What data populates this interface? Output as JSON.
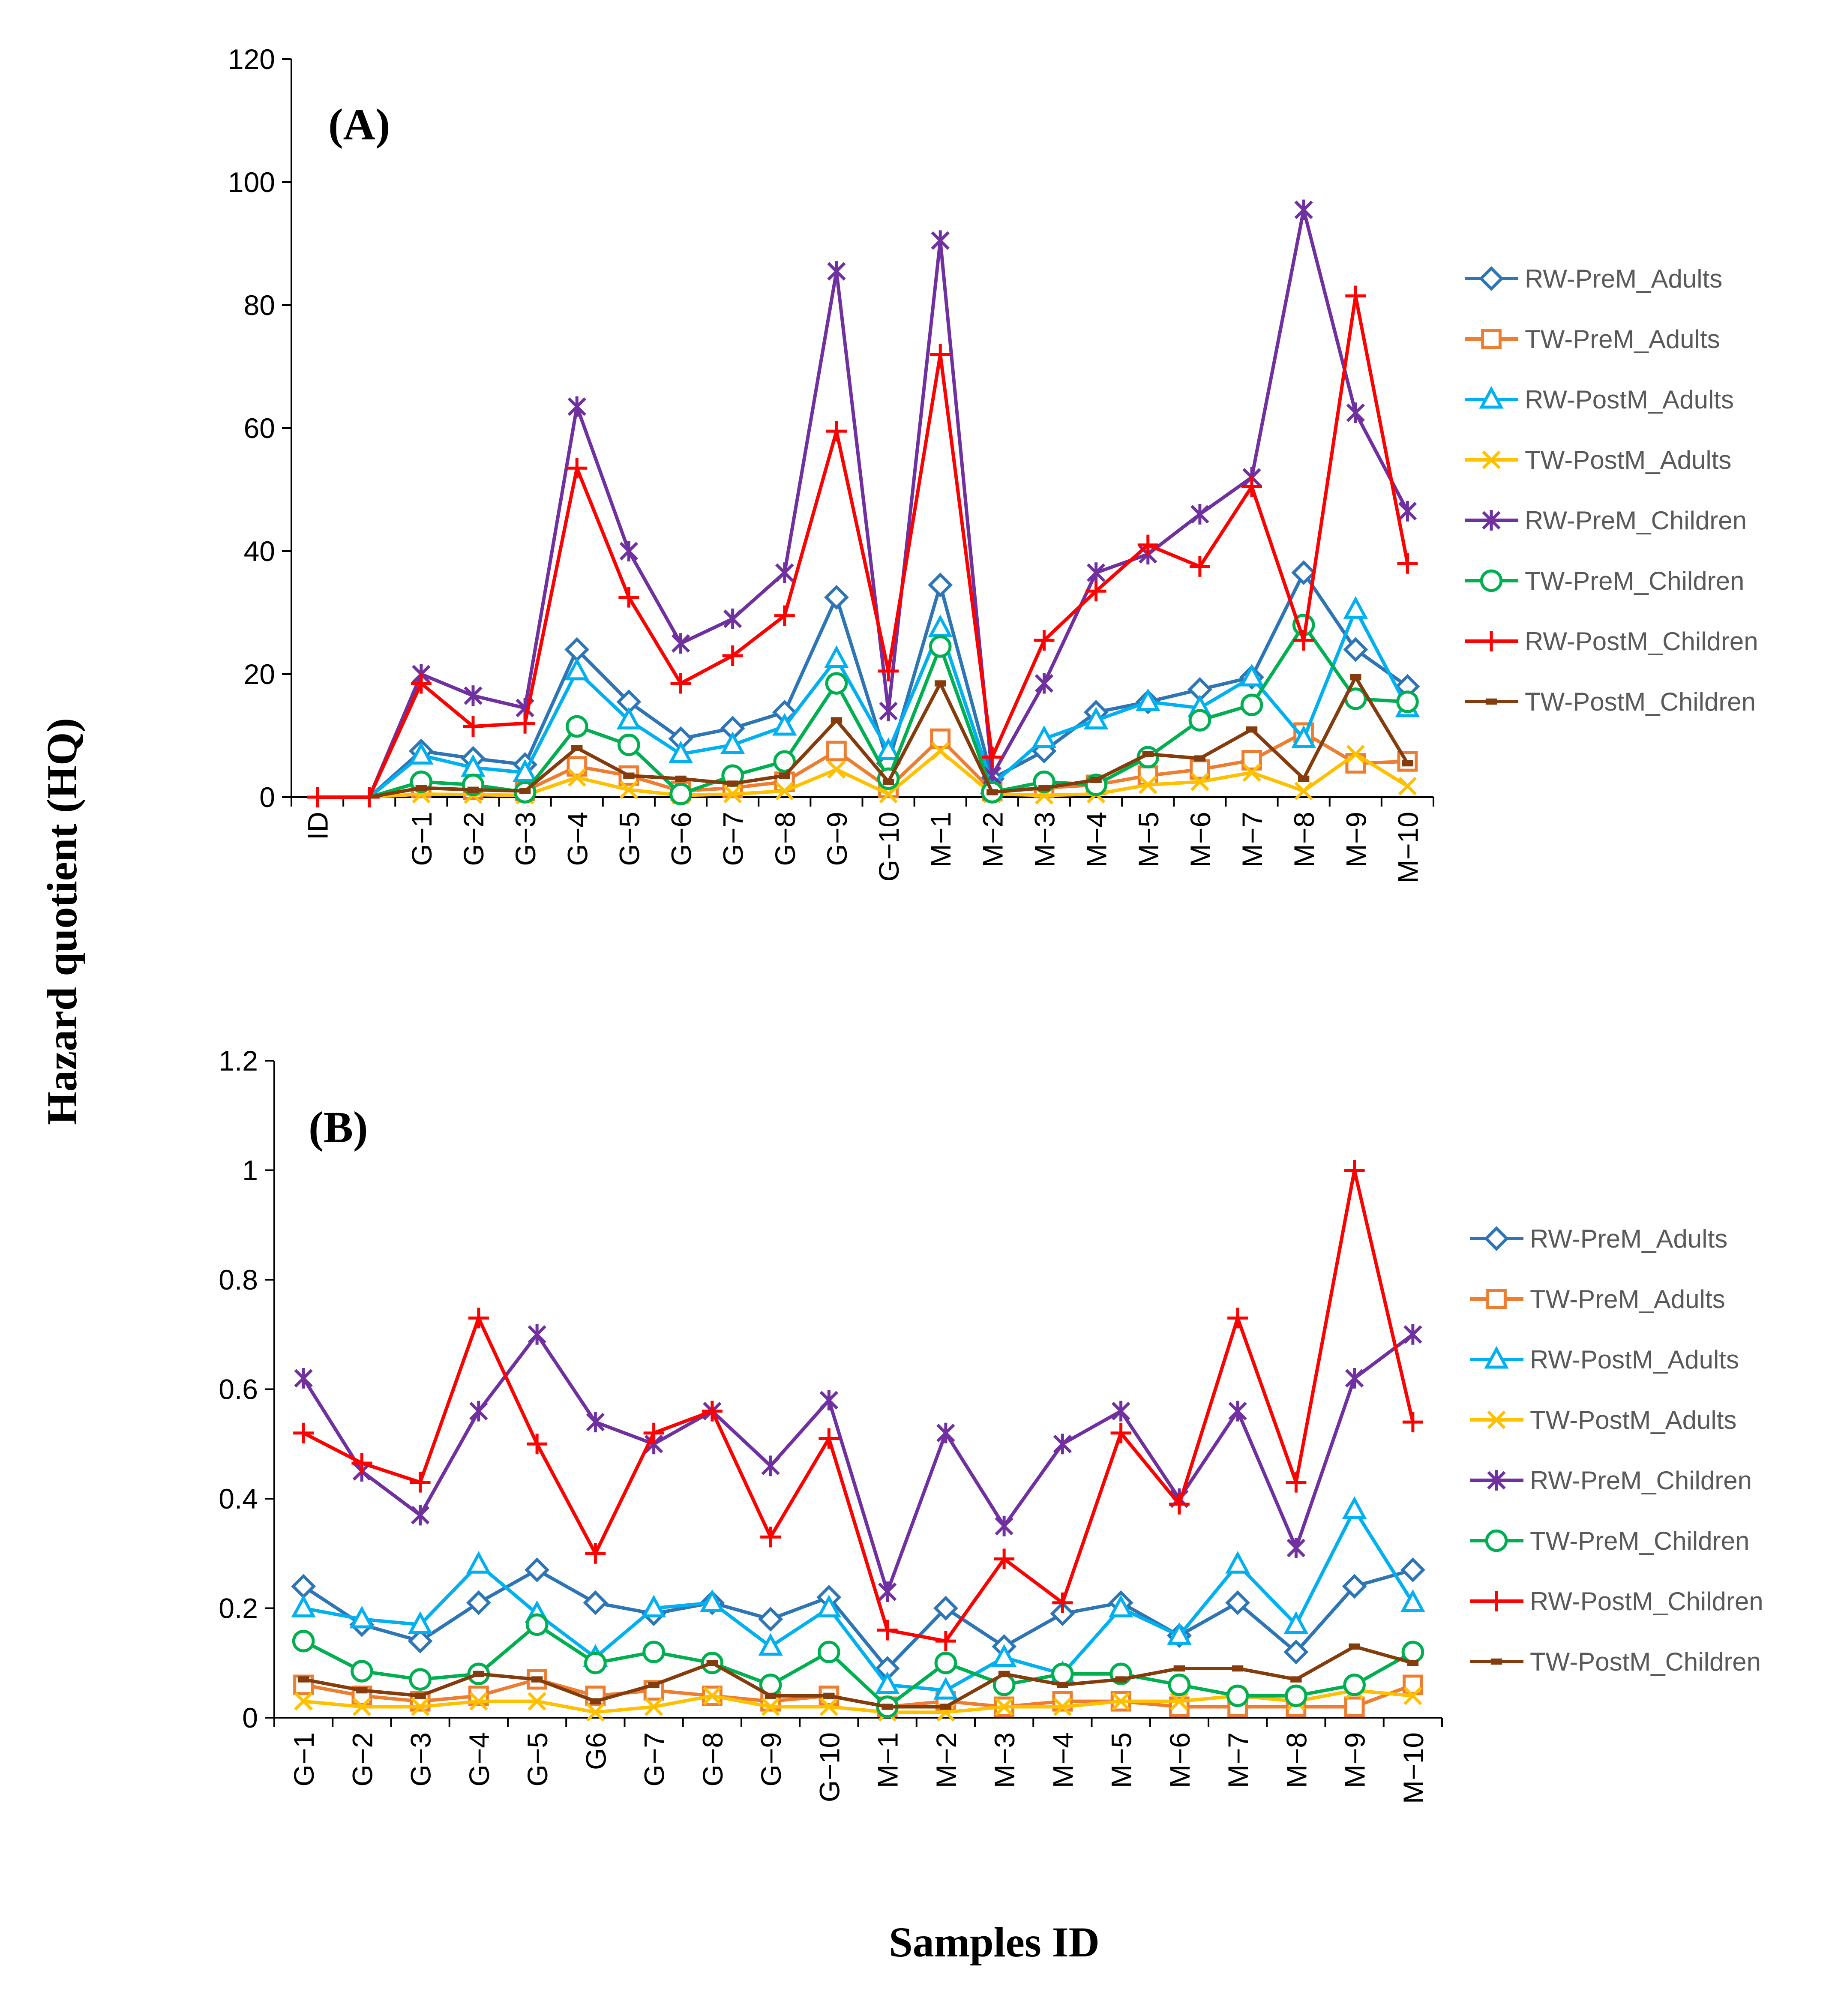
{
  "figure": {
    "ylabel": "Hazard quotient (HQ)",
    "xlabel": "Samples ID"
  },
  "chart_data": [
    {
      "type": "line",
      "panel_label": "(A)",
      "ylim": [
        0,
        120
      ],
      "yticks": [
        "0",
        "20",
        "40",
        "60",
        "80",
        "100",
        "120"
      ],
      "categories": [
        "ID",
        "",
        "G−1",
        "G−2",
        "G−3",
        "G−4",
        "G−5",
        "G−6",
        "G−7",
        "G−8",
        "G−9",
        "G−10",
        "M−1",
        "M−2",
        "M−3",
        "M−4",
        "M−5",
        "M−6",
        "M−7",
        "M−8",
        "M−9",
        "M−10"
      ],
      "legend_position": "right",
      "series": [
        {
          "name": "RW-PreM_Adults",
          "color": "#2E75B6",
          "marker": "diamond",
          "marker_start": 2,
          "values": [
            null,
            0,
            7.5,
            6.3,
            5.3,
            24,
            15.5,
            9.5,
            11.2,
            13.8,
            32.5,
            5.5,
            34.5,
            3,
            7.5,
            13.8,
            15.5,
            17.5,
            19.5,
            36.5,
            24,
            18
          ]
        },
        {
          "name": "TW-PreM_Adults",
          "color": "#ED7D31",
          "marker": "square",
          "marker_start": 2,
          "values": [
            null,
            0,
            1.5,
            1.2,
            1,
            5,
            3.5,
            1,
            1.5,
            2.5,
            7.5,
            1.5,
            9.5,
            1,
            1.5,
            2,
            3.5,
            4.5,
            6,
            10.5,
            5.5,
            5.8
          ]
        },
        {
          "name": "RW-PostM_Adults",
          "color": "#00B0F0",
          "marker": "triangle",
          "marker_start": 2,
          "values": [
            null,
            0,
            6.8,
            4.8,
            4,
            20.5,
            12.5,
            7,
            8.5,
            11.5,
            22.5,
            7.5,
            27.5,
            2,
            9.5,
            12.5,
            15.5,
            14.5,
            19.5,
            9.5,
            30.5,
            14.5
          ]
        },
        {
          "name": "TW-PostM_Adults",
          "color": "#FFC000",
          "marker": "x",
          "marker_start": 2,
          "values": [
            null,
            0,
            0.5,
            0.4,
            0.3,
            3.2,
            1.2,
            0.3,
            0.5,
            1,
            4.5,
            0.5,
            7.5,
            0.5,
            0.3,
            0.5,
            2,
            2.5,
            4,
            1,
            7,
            1.8
          ]
        },
        {
          "name": "RW-PreM_Children",
          "color": "#7030A0",
          "marker": "star",
          "marker_start": 2,
          "values": [
            null,
            0,
            20,
            16.5,
            14.5,
            63.5,
            40,
            25,
            29,
            36.5,
            85.5,
            14,
            90.5,
            3.5,
            18.5,
            36.5,
            39.5,
            46,
            52,
            95.5,
            62.5,
            46.5
          ]
        },
        {
          "name": "TW-PreM_Children",
          "color": "#00B050",
          "marker": "circle",
          "marker_start": 2,
          "values": [
            null,
            0,
            2.5,
            2,
            0.8,
            11.5,
            8.5,
            0.5,
            3.5,
            5.8,
            18.5,
            3,
            24.5,
            0.8,
            2.5,
            2,
            6.5,
            12.5,
            15,
            28,
            16,
            15.5
          ]
        },
        {
          "name": "RW-PostM_Children",
          "color": "#FF0000",
          "marker": "plus",
          "marker_start": 0,
          "values": [
            0,
            0,
            18.5,
            11.5,
            12,
            53.5,
            32.5,
            18.5,
            23,
            29.5,
            59.5,
            20.5,
            72,
            6.5,
            25.5,
            33.5,
            41,
            37.5,
            50.5,
            25.5,
            81.5,
            38
          ]
        },
        {
          "name": "TW-PostM_Children",
          "color": "#843C0C",
          "marker": "dash",
          "marker_start": 2,
          "values": [
            null,
            0,
            1.5,
            1.2,
            1,
            8,
            3.5,
            3,
            2.2,
            3.5,
            12.5,
            2.5,
            18.5,
            0.8,
            1.5,
            2.8,
            7,
            6.3,
            11,
            3,
            19.5,
            5.5
          ]
        }
      ]
    },
    {
      "type": "line",
      "panel_label": "(B)",
      "ylim": [
        0,
        1.2
      ],
      "yticks": [
        "0",
        "0.2",
        "0.4",
        "0.6",
        "0.8",
        "1",
        "1.2"
      ],
      "categories": [
        "G−1",
        "G−2",
        "G−3",
        "G−4",
        "G−5",
        "G6",
        "G−7",
        "G−8",
        "G−9",
        "G−10",
        "M−1",
        "M−2",
        "M−3",
        "M−4",
        "M−5",
        "M−6",
        "M−7",
        "M−8",
        "M−9",
        "M−10"
      ],
      "legend_position": "right",
      "series": [
        {
          "name": "RW-PreM_Adults",
          "color": "#2E75B6",
          "marker": "diamond",
          "values": [
            0.24,
            0.17,
            0.14,
            0.21,
            0.27,
            0.21,
            0.19,
            0.21,
            0.18,
            0.22,
            0.09,
            0.2,
            0.13,
            0.19,
            0.21,
            0.15,
            0.21,
            0.12,
            0.24,
            0.27
          ]
        },
        {
          "name": "TW-PreM_Adults",
          "color": "#ED7D31",
          "marker": "square",
          "values": [
            0.06,
            0.04,
            0.03,
            0.04,
            0.07,
            0.04,
            0.05,
            0.04,
            0.03,
            0.04,
            0.02,
            0.03,
            0.02,
            0.03,
            0.03,
            0.02,
            0.02,
            0.02,
            0.02,
            0.06
          ]
        },
        {
          "name": "RW-PostM_Adults",
          "color": "#00B0F0",
          "marker": "triangle",
          "values": [
            0.2,
            0.18,
            0.17,
            0.28,
            0.19,
            0.11,
            0.2,
            0.21,
            0.13,
            0.2,
            0.06,
            0.05,
            0.11,
            0.08,
            0.2,
            0.15,
            0.28,
            0.17,
            0.38,
            0.21
          ]
        },
        {
          "name": "TW-PostM_Adults",
          "color": "#FFC000",
          "marker": "x",
          "values": [
            0.03,
            0.02,
            0.02,
            0.03,
            0.03,
            0.01,
            0.02,
            0.04,
            0.02,
            0.02,
            0.01,
            0.01,
            0.02,
            0.02,
            0.03,
            0.03,
            0.04,
            0.03,
            0.05,
            0.04
          ]
        },
        {
          "name": "RW-PreM_Children",
          "color": "#7030A0",
          "marker": "star",
          "values": [
            0.62,
            0.45,
            0.37,
            0.56,
            0.7,
            0.54,
            0.5,
            0.56,
            0.46,
            0.58,
            0.23,
            0.52,
            0.35,
            0.5,
            0.56,
            0.4,
            0.56,
            0.31,
            0.62,
            0.7
          ]
        },
        {
          "name": "TW-PreM_Children",
          "color": "#00B050",
          "marker": "circle",
          "values": [
            0.14,
            0.085,
            0.07,
            0.08,
            0.17,
            0.1,
            0.12,
            0.1,
            0.06,
            0.12,
            0.02,
            0.1,
            0.06,
            0.08,
            0.08,
            0.06,
            0.04,
            0.04,
            0.06,
            0.12
          ]
        },
        {
          "name": "RW-PostM_Children",
          "color": "#FF0000",
          "marker": "plus",
          "values": [
            0.52,
            0.465,
            0.43,
            0.73,
            0.5,
            0.3,
            0.52,
            0.56,
            0.33,
            0.51,
            0.16,
            0.14,
            0.29,
            0.21,
            0.52,
            0.39,
            0.73,
            0.43,
            1.0,
            0.54
          ]
        },
        {
          "name": "TW-PostM_Children",
          "color": "#843C0C",
          "marker": "dash",
          "values": [
            0.07,
            0.05,
            0.04,
            0.08,
            0.07,
            0.03,
            0.06,
            0.1,
            0.04,
            0.04,
            0.02,
            0.02,
            0.08,
            0.06,
            0.07,
            0.09,
            0.09,
            0.07,
            0.13,
            0.1
          ]
        }
      ]
    }
  ]
}
